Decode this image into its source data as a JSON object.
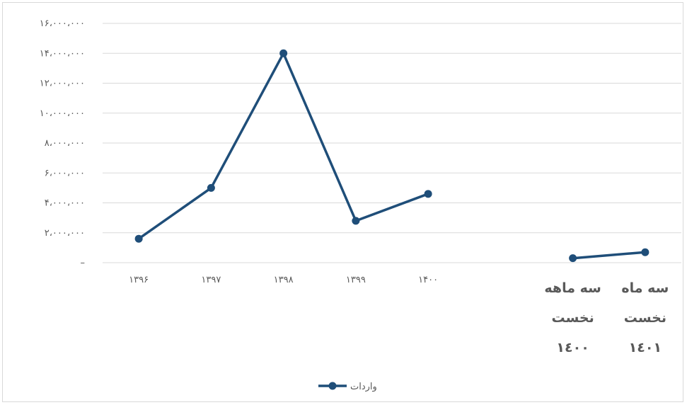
{
  "chart_data": {
    "type": "line",
    "y_ticks": [
      "۱۶،۰۰۰،۰۰۰",
      "۱۴،۰۰۰،۰۰۰",
      "۱۲،۰۰۰،۰۰۰",
      "۱۰،۰۰۰،۰۰۰",
      "۸،۰۰۰،۰۰۰",
      "۶،۰۰۰،۰۰۰",
      "۴،۰۰۰،۰۰۰",
      "۲،۰۰۰،۰۰۰",
      "–"
    ],
    "ylim": [
      0,
      16000000
    ],
    "grid": true,
    "legend_position": "bottom",
    "color": "#1f4e79",
    "categories": [
      [
        "۱۳۹۶"
      ],
      [
        "۱۳۹۷"
      ],
      [
        "۱۳۹۸"
      ],
      [
        "۱۳۹۹"
      ],
      [
        "۱۴۰۰"
      ],
      [
        ""
      ],
      [
        "سه ماهه",
        "نخست",
        "۱٤۰۰"
      ],
      [
        "سه ماه",
        "نخست",
        "۱٤۰۱"
      ]
    ],
    "series": [
      {
        "name": "واردات",
        "segments": [
          [
            0,
            1,
            2,
            3,
            4
          ],
          [
            6,
            7
          ]
        ],
        "values": [
          1600000,
          5000000,
          14000000,
          2800000,
          4600000,
          null,
          300000,
          700000
        ]
      }
    ]
  }
}
